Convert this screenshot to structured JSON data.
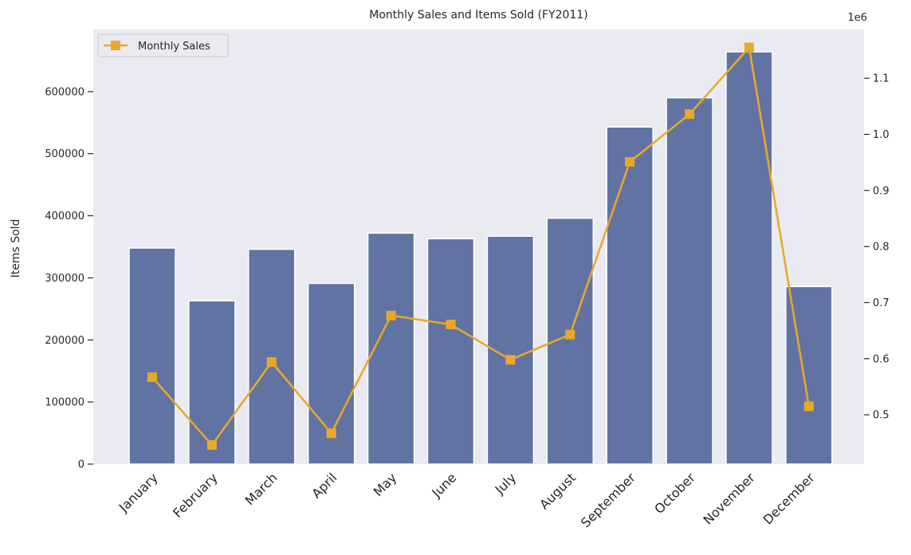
{
  "chart_data": {
    "type": "bar",
    "title": "Monthly Sales and Items Sold (FY2011)",
    "categories": [
      "January",
      "February",
      "March",
      "April",
      "May",
      "June",
      "July",
      "August",
      "September",
      "October",
      "November",
      "December"
    ],
    "bar_series": {
      "values": [
        348000,
        263000,
        346000,
        291000,
        372000,
        363000,
        367000,
        396000,
        543000,
        590000,
        664000,
        286000
      ],
      "color": "#6173a2"
    },
    "line_series": {
      "name": "Monthly Sales",
      "values": [
        567000,
        446000,
        594000,
        467000,
        677000,
        661000,
        598000,
        643000,
        951000,
        1036000,
        1155000,
        515000
      ],
      "color": "#eaa828",
      "marker": "square"
    },
    "ylabel": "Items Sold",
    "ylim": [
      0,
      700000
    ],
    "yticks": [
      0,
      100000,
      200000,
      300000,
      400000,
      500000,
      600000
    ],
    "ytick_labels": [
      "0",
      "100000",
      "200000",
      "300000",
      "400000",
      "500000",
      "600000"
    ],
    "y2lim": [
      412000,
      1187000
    ],
    "y2ticks": [
      0.5,
      0.6,
      0.7,
      0.8,
      0.9,
      1.0,
      1.1
    ],
    "y2tick_labels": [
      "0.5",
      "0.6",
      "0.7",
      "0.8",
      "0.9",
      "1.0",
      "1.1"
    ],
    "y2_offset_label": "1e6",
    "legend": {
      "position": "top-left",
      "label": "Monthly Sales"
    },
    "grid": false,
    "background": "#eaeaf2"
  }
}
